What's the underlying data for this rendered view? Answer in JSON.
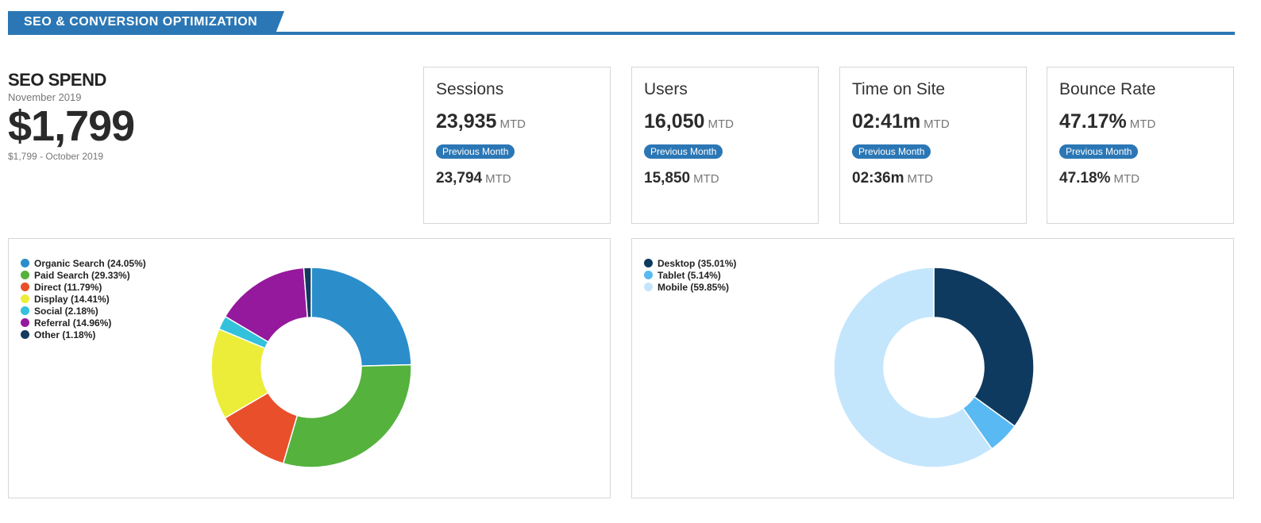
{
  "header": {
    "title": "SEO & CONVERSION OPTIMIZATION"
  },
  "spend": {
    "title": "SEO SPEND",
    "period": "November 2019",
    "amount": "$1,799",
    "previous": "$1,799 - October 2019"
  },
  "kpis": [
    {
      "label": "Sessions",
      "value": "23,935",
      "unit": "MTD",
      "badge": "Previous Month",
      "prev_value": "23,794",
      "prev_unit": "MTD"
    },
    {
      "label": "Users",
      "value": "16,050",
      "unit": "MTD",
      "badge": "Previous Month",
      "prev_value": "15,850",
      "prev_unit": "MTD"
    },
    {
      "label": "Time on Site",
      "value": "02:41m",
      "unit": "MTD",
      "badge": "Previous Month",
      "prev_value": "02:36m",
      "prev_unit": "MTD"
    },
    {
      "label": "Bounce Rate",
      "value": "47.17%",
      "unit": "MTD",
      "badge": "Previous Month",
      "prev_value": "47.18%",
      "prev_unit": "MTD"
    }
  ],
  "chart_data": [
    {
      "type": "pie",
      "donut": true,
      "legend_position": "top-left",
      "series": [
        {
          "name": "Organic Search",
          "legend": "Organic Search (24.05%)",
          "value": 24.05,
          "color": "#2b8ecb"
        },
        {
          "name": "Paid Search",
          "legend": "Paid Search (29.33%)",
          "value": 29.33,
          "color": "#54b23d"
        },
        {
          "name": "Direct",
          "legend": "Direct (11.79%)",
          "value": 11.79,
          "color": "#e84f2a"
        },
        {
          "name": "Display",
          "legend": "Display (14.41%)",
          "value": 14.41,
          "color": "#eced38"
        },
        {
          "name": "Social",
          "legend": "Social (2.18%)",
          "value": 2.18,
          "color": "#34c1db"
        },
        {
          "name": "Referral",
          "legend": "Referral (14.96%)",
          "value": 14.96,
          "color": "#95199c"
        },
        {
          "name": "Other",
          "legend": "Other (1.18%)",
          "value": 1.18,
          "color": "#14395f"
        }
      ]
    },
    {
      "type": "pie",
      "donut": true,
      "legend_position": "top-left",
      "series": [
        {
          "name": "Desktop",
          "legend": "Desktop (35.01%)",
          "value": 35.01,
          "color": "#0f3a5f"
        },
        {
          "name": "Tablet",
          "legend": "Tablet (5.14%)",
          "value": 5.14,
          "color": "#59b9f3"
        },
        {
          "name": "Mobile",
          "legend": "Mobile (59.85%)",
          "value": 59.85,
          "color": "#c4e6fc"
        }
      ]
    }
  ]
}
